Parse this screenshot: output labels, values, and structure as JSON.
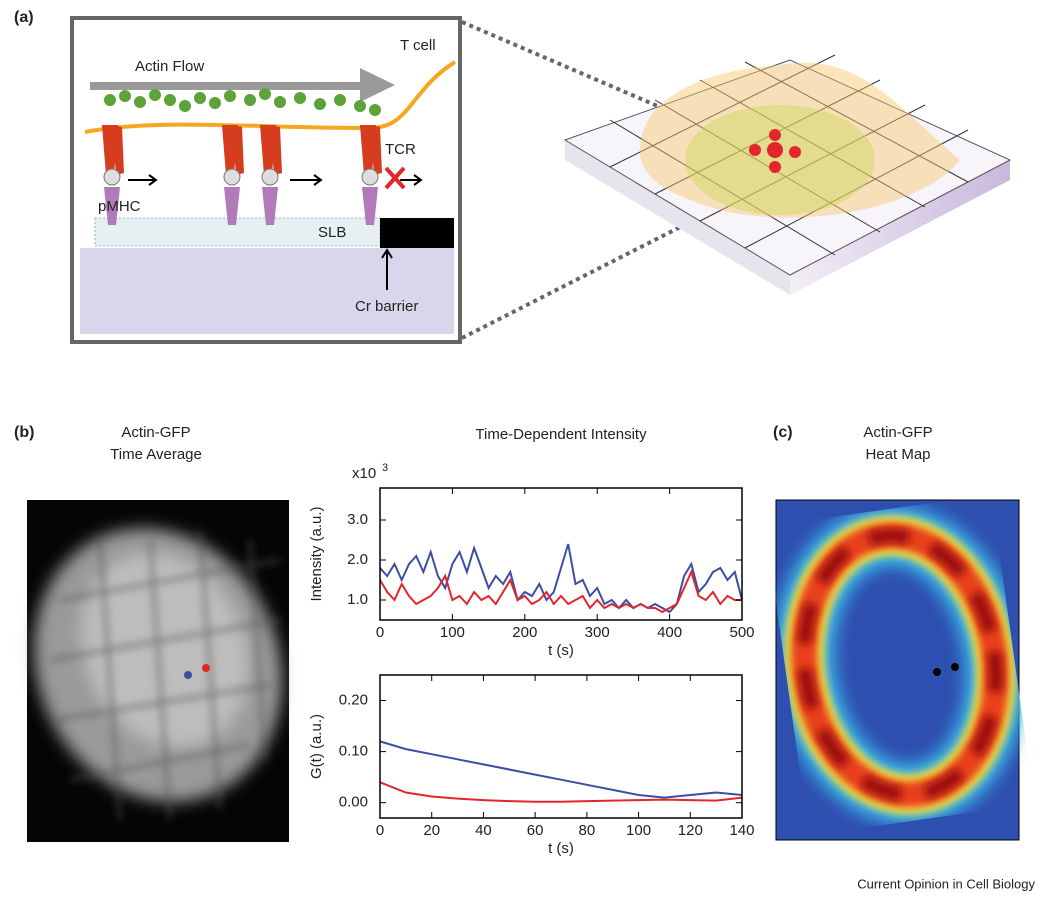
{
  "panel_a": {
    "label": "(a)",
    "actin_flow": "Actin Flow",
    "t_cell": "T cell",
    "tcr": "TCR",
    "pmhc": "pMHC",
    "slb": "SLB",
    "cr_barrier": "Cr barrier"
  },
  "panel_b": {
    "label": "(b)",
    "image_title": [
      "Actin-GFP",
      "Time Average"
    ]
  },
  "panel_c": {
    "label": "(c)",
    "image_title": [
      "Actin-GFP",
      "Heat Map"
    ]
  },
  "chart_data": [
    {
      "type": "line",
      "title": "Time-Dependent Intensity",
      "y_label": "Intensity (a.u.)",
      "x_label": "t (s)",
      "y_scale_note": {
        "base": "x10",
        "exponent": "3"
      },
      "x": [
        0,
        10,
        20,
        30,
        40,
        50,
        60,
        70,
        80,
        90,
        100,
        110,
        120,
        130,
        140,
        150,
        160,
        170,
        180,
        190,
        200,
        210,
        220,
        230,
        240,
        250,
        260,
        270,
        280,
        290,
        300,
        310,
        320,
        330,
        340,
        350,
        360,
        370,
        380,
        390,
        400,
        410,
        420,
        430,
        440,
        450,
        460,
        470,
        480,
        490,
        500
      ],
      "series": [
        {
          "name": "blue",
          "color": "#3b4ea3",
          "values": [
            1.8,
            1.6,
            1.9,
            1.5,
            1.9,
            2.1,
            1.7,
            2.2,
            1.6,
            1.3,
            1.9,
            2.2,
            1.7,
            2.3,
            1.8,
            1.3,
            1.6,
            1.4,
            1.7,
            1.0,
            1.2,
            1.1,
            1.4,
            1.0,
            1.2,
            1.8,
            2.4,
            1.4,
            1.5,
            1.1,
            1.3,
            0.9,
            1.0,
            0.8,
            1.0,
            0.8,
            0.9,
            0.8,
            0.9,
            0.8,
            0.7,
            0.9,
            1.6,
            1.9,
            1.2,
            1.4,
            1.7,
            1.8,
            1.5,
            1.7,
            1.0
          ]
        },
        {
          "name": "red",
          "color": "#e2262a",
          "values": [
            1.5,
            1.2,
            1.0,
            1.4,
            1.1,
            0.9,
            1.0,
            1.1,
            1.3,
            1.6,
            1.0,
            1.1,
            0.9,
            1.2,
            1.0,
            1.1,
            0.9,
            1.2,
            1.5,
            1.0,
            1.1,
            0.9,
            1.0,
            1.2,
            0.9,
            1.1,
            0.9,
            1.0,
            1.1,
            0.8,
            1.0,
            0.8,
            0.9,
            0.8,
            0.9,
            0.8,
            0.9,
            0.8,
            0.8,
            0.7,
            0.8,
            0.9,
            1.3,
            1.7,
            1.1,
            1.0,
            1.2,
            0.9,
            1.1,
            1.0,
            1.0
          ]
        }
      ],
      "xlim": [
        0,
        500
      ],
      "xticks": [
        0,
        100,
        200,
        300,
        400,
        500
      ],
      "ylim": [
        0.5,
        3.8
      ],
      "yticks": [
        {
          "value": 1,
          "label": "1.0"
        },
        {
          "value": 2,
          "label": "2.0"
        },
        {
          "value": 3,
          "label": "3.0"
        }
      ]
    },
    {
      "type": "line",
      "y_label": "G(t) (a.u.)",
      "x_label": "t (s)",
      "x": [
        0,
        10,
        20,
        30,
        40,
        50,
        60,
        70,
        80,
        90,
        100,
        110,
        120,
        130,
        140
      ],
      "series": [
        {
          "name": "blue",
          "color": "#3b4ea3",
          "values": [
            0.12,
            0.105,
            0.095,
            0.085,
            0.075,
            0.065,
            0.055,
            0.045,
            0.035,
            0.025,
            0.015,
            0.01,
            0.015,
            0.02,
            0.015
          ]
        },
        {
          "name": "red",
          "color": "#e2262a",
          "values": [
            0.04,
            0.02,
            0.012,
            0.008,
            0.005,
            0.003,
            0.002,
            0.002,
            0.003,
            0.004,
            0.005,
            0.006,
            0.005,
            0.004,
            0.01
          ]
        }
      ],
      "xlim": [
        0,
        140
      ],
      "xticks": [
        0,
        20,
        40,
        60,
        80,
        100,
        120,
        140
      ],
      "ylim": [
        -0.03,
        0.25
      ],
      "yticks": [
        {
          "value": 0,
          "label": "0.00"
        },
        {
          "value": 0.1,
          "label": "0.10"
        },
        {
          "value": 0.2,
          "label": "0.20"
        }
      ]
    }
  ],
  "footer": "Current Opinion in Cell Biology"
}
